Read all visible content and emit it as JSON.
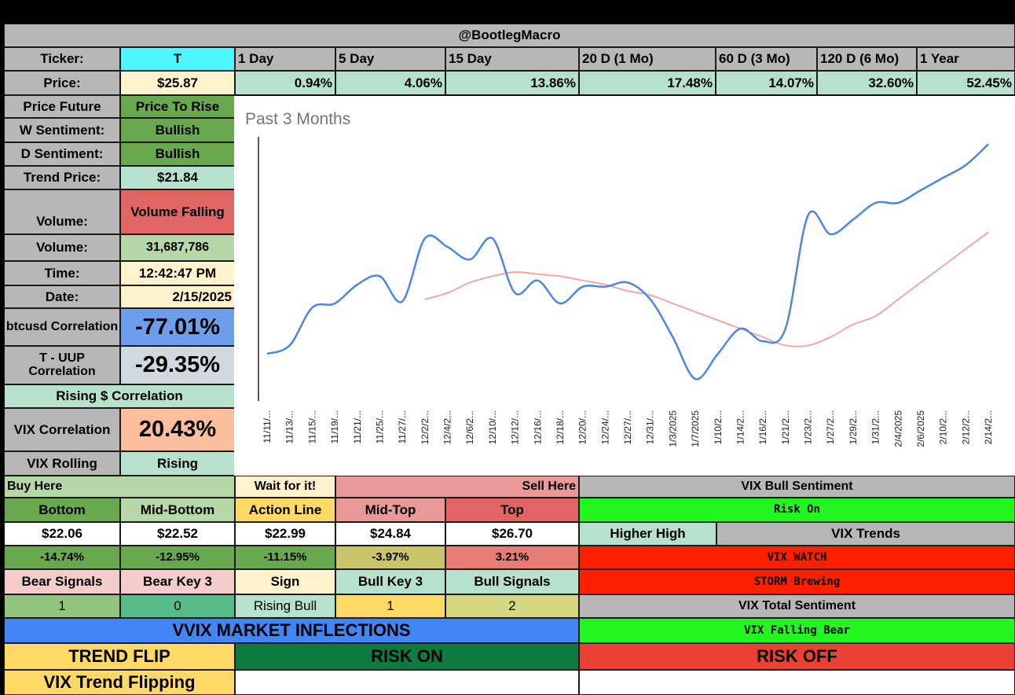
{
  "header": {
    "title": "@BootlegMacro"
  },
  "ticker": {
    "label": "Ticker:",
    "value": "T"
  },
  "periods": [
    "1 Day",
    "5 Day",
    "15 Day",
    "20 D (1 Mo)",
    "60 D (3 Mo)",
    "120 D (6 Mo)",
    "1 Year"
  ],
  "price": {
    "label": "Price:",
    "value": "$25.87"
  },
  "changes": [
    "0.94%",
    "4.06%",
    "13.86%",
    "17.48%",
    "14.07%",
    "32.60%",
    "52.45%"
  ],
  "stats": {
    "price_future": {
      "label": "Price Future",
      "value": "Price To Rise"
    },
    "w_sentiment": {
      "label": "W Sentiment:",
      "value": "Bullish"
    },
    "d_sentiment": {
      "label": "D Sentiment:",
      "value": "Bullish"
    },
    "trend_price": {
      "label": "Trend Price:",
      "value": "$21.84"
    },
    "volume_trend": {
      "label": "Volume:",
      "value": "Volume Falling"
    },
    "volume": {
      "label": "Volume:",
      "value": "31,687,786"
    },
    "time": {
      "label": "Time:",
      "value": "12:42:47 PM"
    },
    "date": {
      "label": "Date:",
      "value": "2/15/2025"
    },
    "btc_corr": {
      "label": "btcusd Correlation",
      "value": "-77.01%"
    },
    "uup_corr": {
      "label": "T - UUP Correlation",
      "value": "-29.35%"
    },
    "rising_corr": {
      "label": "Rising $ Correlation"
    },
    "vix_corr": {
      "label": "VIX Correlation",
      "value": "20.43%"
    },
    "vix_rolling": {
      "label": "VIX Rolling",
      "value": "Rising"
    }
  },
  "chart_data": {
    "type": "line",
    "title": "Past 3 Months",
    "x": [
      "11/11/...",
      "11/13/...",
      "11/15/...",
      "11/19/...",
      "11/21/...",
      "11/25/...",
      "11/27/...",
      "12/2/2...",
      "12/4/2...",
      "12/6/2...",
      "12/10/...",
      "12/12/...",
      "12/16/...",
      "12/18/...",
      "12/20/...",
      "12/24/...",
      "12/27/...",
      "12/31/...",
      "1/3/2025",
      "1/7/2025",
      "1/10/2...",
      "1/14/2...",
      "1/16/2...",
      "1/21/2...",
      "1/23/2...",
      "1/27/2...",
      "1/29/2...",
      "1/31/2...",
      "2/4/2025",
      "2/6/2025",
      "2/10/2...",
      "2/12/2...",
      "2/14/2..."
    ],
    "series": [
      {
        "color": "#4a86e8",
        "values": [
          21.2,
          21.4,
          22.3,
          22.4,
          22.85,
          23.05,
          22.45,
          23.95,
          23.75,
          23.45,
          23.95,
          22.65,
          22.95,
          22.4,
          22.8,
          22.8,
          22.9,
          22.5,
          21.6,
          20.6,
          21.2,
          21.8,
          21.5,
          21.8,
          24.5,
          24.05,
          24.4,
          24.8,
          24.8,
          25.1,
          25.4,
          25.7,
          26.2
        ]
      },
      {
        "color": "#f4a7a3",
        "values": [
          null,
          null,
          null,
          null,
          null,
          null,
          null,
          22.5,
          22.65,
          22.9,
          23.05,
          23.15,
          23.1,
          23.05,
          22.95,
          22.85,
          22.7,
          22.6,
          22.4,
          22.2,
          22.0,
          21.8,
          21.6,
          21.4,
          21.4,
          21.6,
          21.9,
          22.1,
          22.5,
          22.9,
          23.3,
          23.7,
          24.1
        ]
      }
    ],
    "ylim": [
      20.0,
      26.6
    ]
  },
  "zones": {
    "buy": "Buy Here",
    "wait": "Wait for it!",
    "sell": "Sell Here",
    "bottom": {
      "label": "Bottom",
      "value": "$22.06",
      "pct": "-14.74%"
    },
    "mid_bottom": {
      "label": "Mid-Bottom",
      "value": "$22.52",
      "pct": "-12.95%"
    },
    "action": {
      "label": "Action Line",
      "value": "$22.99",
      "pct": "-11.15%"
    },
    "mid_top": {
      "label": "Mid-Top",
      "value": "$24.84",
      "pct": "-3.97%"
    },
    "top": {
      "label": "Top",
      "value": "$26.70",
      "pct": "3.21%"
    }
  },
  "signals": {
    "labels": [
      "Bear Signals",
      "Bear Key 3",
      "Sign",
      "Bull Key 3",
      "Bull Signals"
    ],
    "values": [
      "1",
      "0",
      "Rising Bull",
      "1",
      "2"
    ]
  },
  "vix": {
    "bull_sentiment_label": "VIX Bull Sentiment",
    "risk_on": "Risk On",
    "higher_high": "Higher High",
    "trends_label": "VIX Trends",
    "watch": "VIX WATCH",
    "storm": "STORM Brewing",
    "total_label": "VIX Total Sentiment",
    "falling": "VIX Falling Bear"
  },
  "vvix": {
    "title": "VVIX MARKET INFLECTIONS",
    "trend_flip": "TREND FLIP",
    "risk_on": "RISK ON",
    "risk_off": "RISK OFF",
    "vix_flip": "VIX Trend Flipping"
  },
  "colors": {
    "accent_blue": "#4a86e8",
    "trend_red": "#f4a7a3",
    "risk_on_green": "#22f51f",
    "risk_off_red": "#fb2000"
  }
}
